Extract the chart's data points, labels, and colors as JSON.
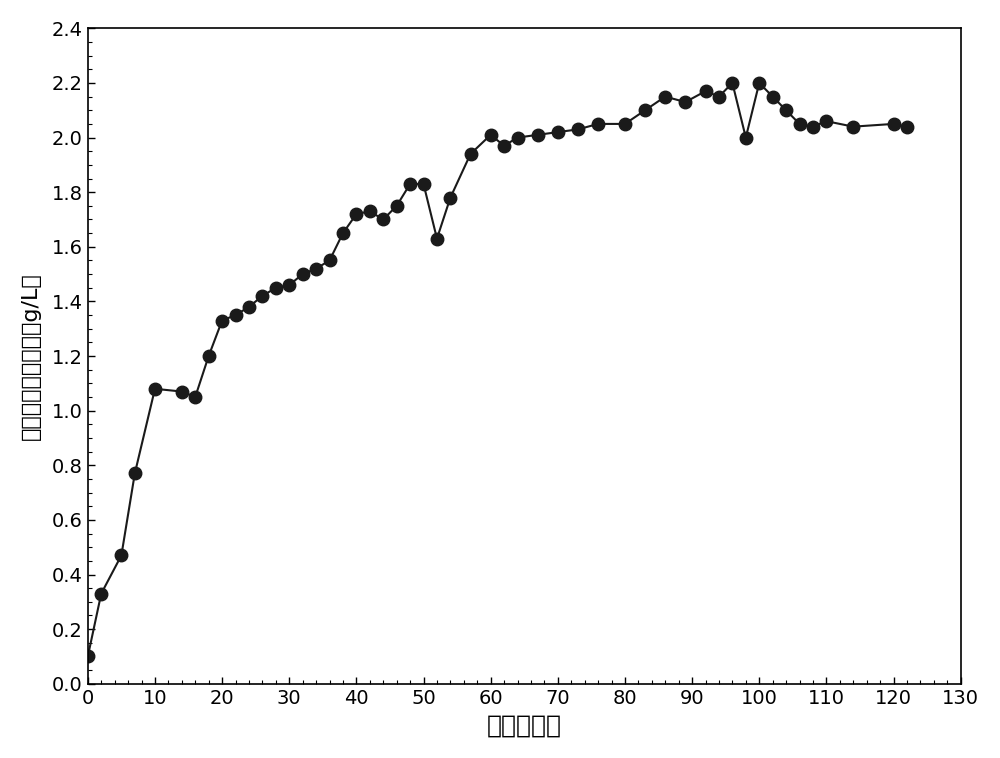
{
  "x": [
    0,
    2,
    5,
    7,
    10,
    14,
    16,
    18,
    20,
    22,
    24,
    26,
    28,
    30,
    32,
    34,
    36,
    38,
    40,
    42,
    44,
    46,
    48,
    50,
    52,
    54,
    57,
    60,
    62,
    64,
    67,
    70,
    73,
    76,
    80,
    83,
    86,
    89,
    92,
    94,
    96,
    98,
    100,
    102,
    104,
    106,
    108,
    110,
    114,
    120,
    122
  ],
  "y": [
    0.1,
    0.33,
    0.47,
    0.77,
    1.08,
    1.07,
    1.05,
    1.2,
    1.33,
    1.35,
    1.38,
    1.42,
    1.45,
    1.46,
    1.5,
    1.52,
    1.55,
    1.65,
    1.72,
    1.73,
    1.7,
    1.75,
    1.83,
    1.83,
    1.63,
    1.78,
    1.94,
    2.01,
    1.97,
    2.0,
    2.01,
    2.02,
    2.03,
    2.05,
    2.05,
    2.1,
    2.15,
    2.13,
    2.17,
    2.15,
    2.2,
    2.0,
    2.2,
    2.15,
    2.1,
    2.05,
    2.04,
    2.06,
    2.04,
    2.05,
    2.04
  ],
  "xlabel": "时间（天）",
  "ylabel": "浸出液中铜的浓度（g/L）",
  "xlim": [
    0,
    130
  ],
  "ylim": [
    0.0,
    2.4
  ],
  "xticks": [
    0,
    10,
    20,
    30,
    40,
    50,
    60,
    70,
    80,
    90,
    100,
    110,
    120,
    130
  ],
  "yticks": [
    0.0,
    0.2,
    0.4,
    0.6,
    0.8,
    1.0,
    1.2,
    1.4,
    1.6,
    1.8,
    2.0,
    2.2,
    2.4
  ],
  "line_color": "#1a1a1a",
  "marker_color": "#1a1a1a",
  "marker_size": 9,
  "line_width": 1.5,
  "background_color": "#ffffff",
  "xlabel_fontsize": 18,
  "ylabel_fontsize": 16,
  "tick_fontsize": 14
}
